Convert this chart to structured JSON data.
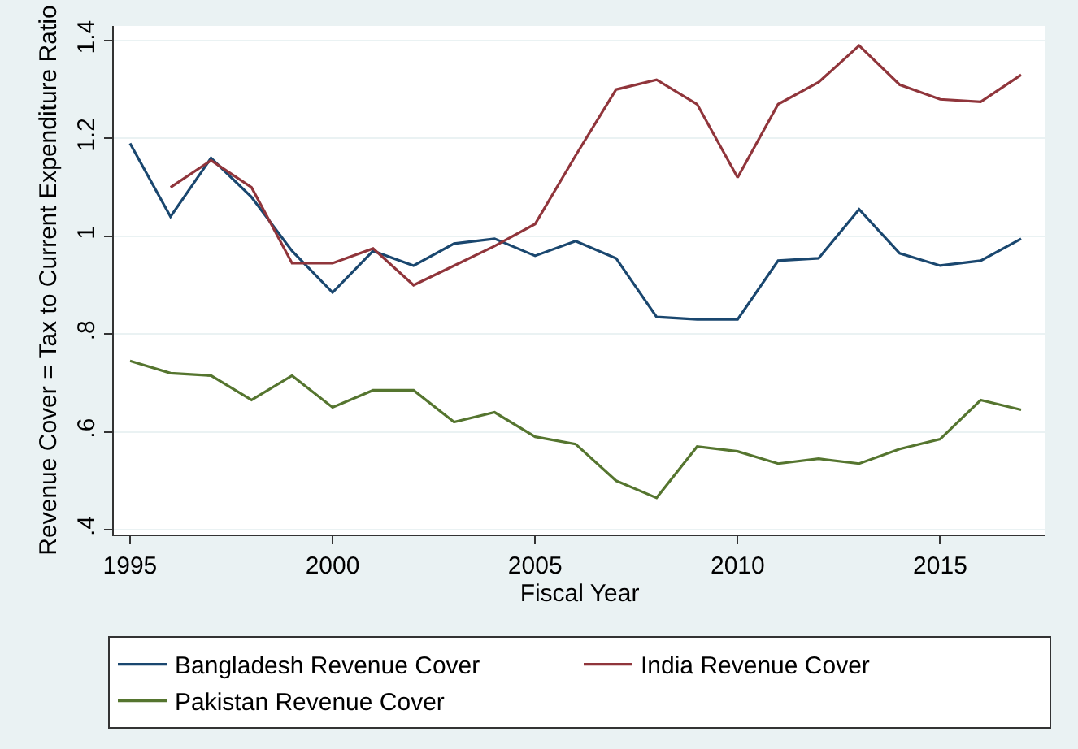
{
  "chart_data": {
    "type": "line",
    "xlabel": "Fiscal Year",
    "ylabel": "Revenue Cover = Tax to Current Expenditure Ratio",
    "x": [
      1995,
      1996,
      1997,
      1998,
      1999,
      2000,
      2001,
      2002,
      2003,
      2004,
      2005,
      2006,
      2007,
      2008,
      2009,
      2010,
      2011,
      2012,
      2013,
      2014,
      2015,
      2016,
      2017
    ],
    "series": [
      {
        "name": "Bangladesh Revenue Cover",
        "color": "#1a476f",
        "values": [
          1.19,
          1.04,
          1.16,
          1.08,
          0.97,
          0.885,
          0.97,
          0.94,
          0.985,
          0.995,
          0.96,
          0.99,
          0.955,
          0.835,
          0.83,
          0.83,
          0.95,
          0.955,
          1.055,
          0.965,
          0.94,
          0.95,
          0.995
        ]
      },
      {
        "name": "India Revenue Cover",
        "color": "#90353b",
        "values": [
          null,
          1.1,
          1.155,
          1.1,
          0.945,
          0.945,
          0.975,
          0.9,
          0.94,
          0.98,
          1.025,
          1.165,
          1.3,
          1.32,
          1.27,
          1.12,
          1.27,
          1.315,
          1.39,
          1.31,
          1.28,
          1.275,
          1.33
        ]
      },
      {
        "name": "Pakistan Revenue Cover",
        "color": "#55752f",
        "values": [
          0.745,
          0.72,
          0.715,
          0.665,
          0.715,
          0.65,
          0.685,
          0.685,
          0.62,
          0.64,
          0.59,
          0.575,
          0.5,
          0.465,
          0.57,
          0.56,
          0.535,
          0.545,
          0.535,
          0.565,
          0.585,
          0.665,
          0.645
        ]
      }
    ],
    "xlim": [
      1994.6,
      2017.6
    ],
    "xticks": [
      1995,
      2000,
      2005,
      2010,
      2015
    ],
    "ylim": [
      0.39,
      1.43
    ],
    "yticks": [
      {
        "value": 0.4,
        "label": ".4"
      },
      {
        "value": 0.6,
        "label": ".6"
      },
      {
        "value": 0.8,
        "label": ".8"
      },
      1,
      1.2,
      1.4
    ],
    "grid": "y",
    "legend": "bottom",
    "marker": "none",
    "line_style": "solid"
  }
}
